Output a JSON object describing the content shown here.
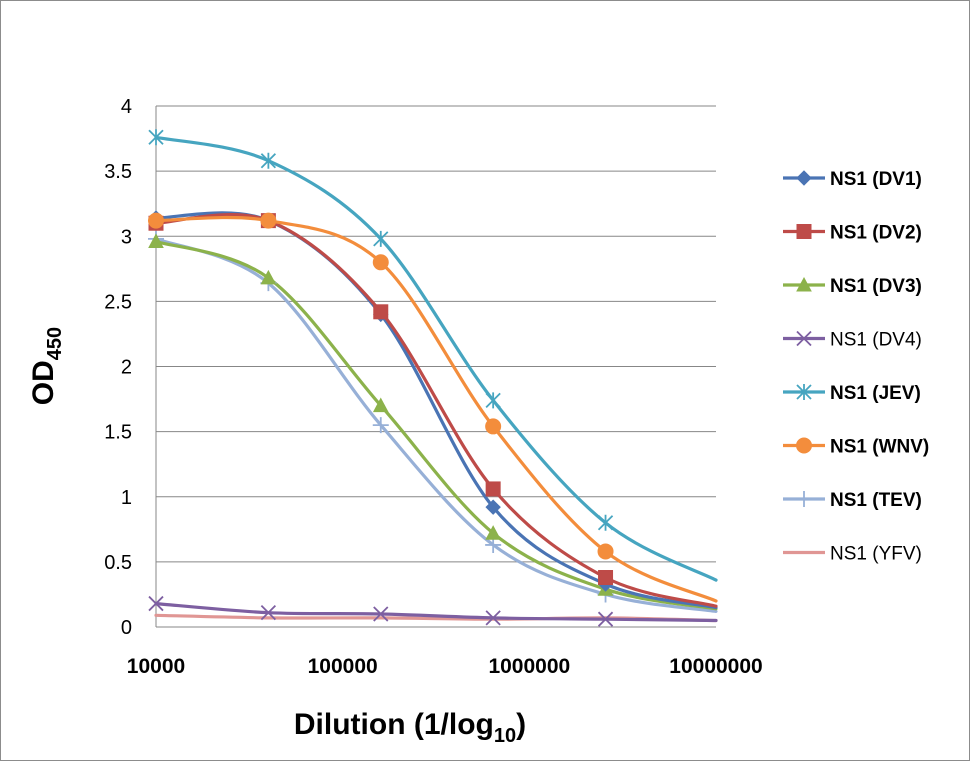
{
  "chart_data": {
    "type": "line",
    "x_scale": "log",
    "xlim": [
      10000,
      10000000
    ],
    "ylim": [
      0,
      4
    ],
    "y_ticks": [
      "0",
      "0.5",
      "1",
      "1.5",
      "2",
      "2.5",
      "3",
      "3.5",
      "4"
    ],
    "x_ticks": [
      "10000",
      "100000",
      "1000000",
      "10000000"
    ],
    "xlabel": {
      "main": "Dilution (1/log",
      "sub": "10",
      "close": ")"
    },
    "ylabel": {
      "main": "OD",
      "sub": "450"
    },
    "grid": "horizontal",
    "legend_position": "right",
    "x": [
      10000,
      40000,
      160000,
      640000,
      2560000,
      10000000
    ],
    "series": [
      {
        "name": "NS1 (DV1)",
        "color": "#4a74b4",
        "marker": "diamond",
        "bold": true,
        "values": [
          3.14,
          3.12,
          2.4,
          0.92,
          0.33,
          0.15
        ]
      },
      {
        "name": "NS1 (DV2)",
        "color": "#be4b48",
        "marker": "square",
        "bold": true,
        "values": [
          3.1,
          3.12,
          2.42,
          1.06,
          0.38,
          0.16
        ]
      },
      {
        "name": "NS1 (DV3)",
        "color": "#8cb24b",
        "marker": "triangle",
        "bold": true,
        "values": [
          2.96,
          2.68,
          1.7,
          0.72,
          0.29,
          0.14
        ]
      },
      {
        "name": "NS1 (DV4)",
        "color": "#7d5fa1",
        "marker": "x",
        "bold": false,
        "values": [
          0.18,
          0.11,
          0.1,
          0.07,
          0.06,
          0.05
        ]
      },
      {
        "name": "NS1 (JEV)",
        "color": "#46a5c0",
        "marker": "star",
        "bold": true,
        "values": [
          3.76,
          3.58,
          2.98,
          1.74,
          0.8,
          0.36
        ]
      },
      {
        "name": "NS1 (WNV)",
        "color": "#f38d3c",
        "marker": "circle",
        "bold": true,
        "values": [
          3.12,
          3.12,
          2.8,
          1.54,
          0.58,
          0.2
        ]
      },
      {
        "name": "NS1 (TEV)",
        "color": "#97b0d7",
        "marker": "plus",
        "bold": true,
        "values": [
          2.98,
          2.64,
          1.55,
          0.63,
          0.25,
          0.12
        ]
      },
      {
        "name": "NS1 (YFV)",
        "color": "#e09694",
        "marker": "none",
        "bold": false,
        "values": [
          0.09,
          0.07,
          0.07,
          0.06,
          0.07,
          0.05
        ]
      }
    ]
  }
}
